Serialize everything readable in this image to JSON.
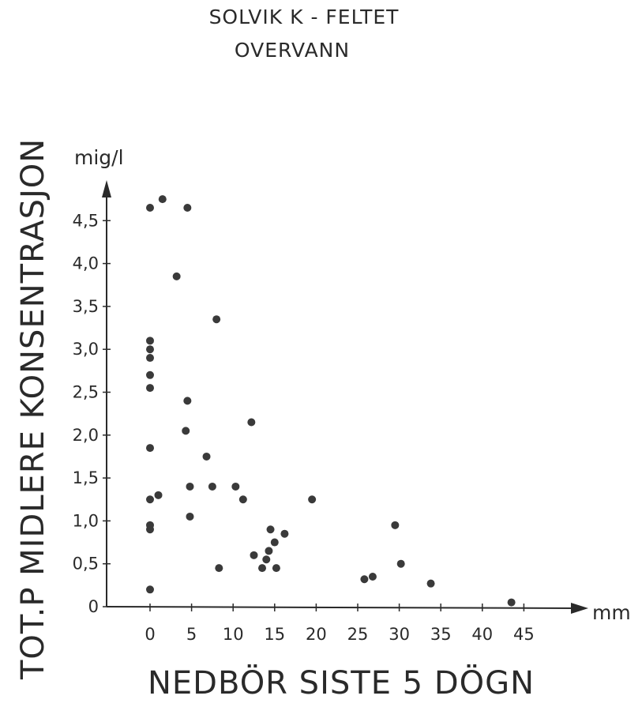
{
  "chart_data": {
    "type": "scatter",
    "title": [
      "SOLVIK  K - FELTET",
      "OVERVANN"
    ],
    "ylabel": "TOT.P  MIDLERE  KONSENTRASJON",
    "xlabel": "NEDBÖR  SISTE  5 DÖGN",
    "y_unit": "mig/l",
    "x_unit": "mm",
    "xlim": [
      0,
      50
    ],
    "ylim": [
      0,
      5.0
    ],
    "x_ticks": [
      0,
      5,
      10,
      15,
      20,
      25,
      30,
      35,
      40,
      45
    ],
    "x_tick_labels": [
      "0",
      "5",
      "10",
      "15",
      "20",
      "25",
      "30",
      "35",
      "40",
      "45"
    ],
    "y_ticks": [
      0,
      0.5,
      1.0,
      1.5,
      2.0,
      2.5,
      3.0,
      3.5,
      4.0,
      4.5
    ],
    "y_tick_labels": [
      "0",
      "0,5",
      "1,0",
      "1,5",
      "2,0",
      "2,5",
      "3,0",
      "3,5",
      "4,0",
      "4,5"
    ],
    "points": [
      {
        "x": 0.0,
        "y": 4.65
      },
      {
        "x": 1.5,
        "y": 4.75
      },
      {
        "x": 4.5,
        "y": 4.65
      },
      {
        "x": 3.2,
        "y": 3.85
      },
      {
        "x": 8.0,
        "y": 3.35
      },
      {
        "x": 0.0,
        "y": 3.1
      },
      {
        "x": 0.0,
        "y": 3.0
      },
      {
        "x": 0.0,
        "y": 2.9
      },
      {
        "x": 0.0,
        "y": 2.7
      },
      {
        "x": 0.0,
        "y": 2.55
      },
      {
        "x": 4.5,
        "y": 2.4
      },
      {
        "x": 4.3,
        "y": 2.05
      },
      {
        "x": 12.2,
        "y": 2.15
      },
      {
        "x": 0.0,
        "y": 1.85
      },
      {
        "x": 6.8,
        "y": 1.75
      },
      {
        "x": 4.8,
        "y": 1.4
      },
      {
        "x": 7.5,
        "y": 1.4
      },
      {
        "x": 10.3,
        "y": 1.4
      },
      {
        "x": 1.0,
        "y": 1.3
      },
      {
        "x": 0.0,
        "y": 1.25
      },
      {
        "x": 11.2,
        "y": 1.25
      },
      {
        "x": 19.5,
        "y": 1.25
      },
      {
        "x": 4.8,
        "y": 1.05
      },
      {
        "x": 0.0,
        "y": 0.95
      },
      {
        "x": 0.0,
        "y": 0.9
      },
      {
        "x": 14.5,
        "y": 0.9
      },
      {
        "x": 16.2,
        "y": 0.85
      },
      {
        "x": 29.5,
        "y": 0.95
      },
      {
        "x": 15.0,
        "y": 0.75
      },
      {
        "x": 14.3,
        "y": 0.65
      },
      {
        "x": 12.5,
        "y": 0.6
      },
      {
        "x": 14.0,
        "y": 0.55
      },
      {
        "x": 30.2,
        "y": 0.5
      },
      {
        "x": 8.3,
        "y": 0.45
      },
      {
        "x": 13.5,
        "y": 0.45
      },
      {
        "x": 15.2,
        "y": 0.45
      },
      {
        "x": 26.8,
        "y": 0.35
      },
      {
        "x": 25.8,
        "y": 0.32
      },
      {
        "x": 33.8,
        "y": 0.27
      },
      {
        "x": 0.0,
        "y": 0.2
      },
      {
        "x": 43.5,
        "y": 0.05
      }
    ]
  }
}
